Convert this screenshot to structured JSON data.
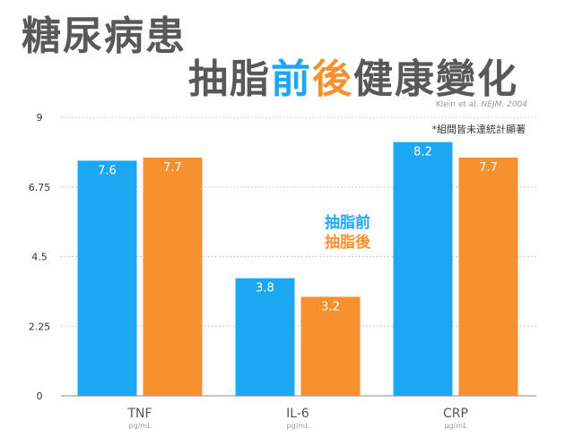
{
  "title": {
    "line1": "糖尿病患",
    "line2_part1": "抽脂",
    "line2_highlight_before": "前",
    "line2_highlight_after": "後",
    "line2_part2": "健康變化"
  },
  "citation": {
    "authors": "Klein et al.",
    "journal": "NEJM. 2004"
  },
  "note": "*組間皆未達統計顯著",
  "colors": {
    "before": "#1da7f2",
    "after": "#f7902f",
    "title": "#585858"
  },
  "legend": {
    "before": "抽脂前",
    "after": "抽脂後"
  },
  "chart_data": {
    "type": "bar",
    "categories": [
      "TNF",
      "IL-6",
      "CRP"
    ],
    "units": [
      "pg/mL",
      "pg/mL",
      "μg/mL"
    ],
    "series": [
      {
        "name": "抽脂前",
        "values": [
          7.6,
          3.8,
          8.2
        ],
        "labels": [
          "7.6",
          "3.8",
          "8.2"
        ]
      },
      {
        "name": "抽脂後",
        "values": [
          7.7,
          3.2,
          7.7
        ],
        "labels": [
          "7.7",
          "3.2",
          "7.7"
        ]
      }
    ],
    "yticks": [
      0,
      2.25,
      4.5,
      6.75,
      9
    ],
    "ytick_labels": [
      "0",
      "2.25",
      "4.5",
      "6.75",
      "9"
    ],
    "ylim": [
      0,
      9
    ],
    "grid": true,
    "legend_position": "center"
  }
}
